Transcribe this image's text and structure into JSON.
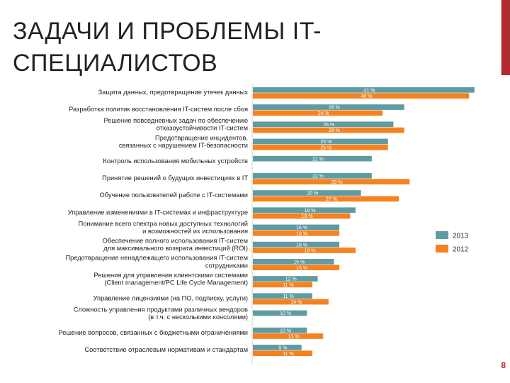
{
  "slide": {
    "title_line1": "ЗАДАЧИ И ПРОБЛЕМЫ IT-",
    "title_line2": "СПЕЦИАЛИСТОВ",
    "page_number": "8"
  },
  "chart_data": {
    "type": "bar",
    "orientation": "horizontal",
    "title": "",
    "categories": [
      [
        "Защита данных, предотвращение утечек данных"
      ],
      [
        "Разработка политик восстановления IT-систем после сбоя"
      ],
      [
        "Решение повседневных задач по обеспечению",
        "отказоустойчивости IT-систем"
      ],
      [
        "Предотвращение инцидентов,",
        "связанных с нарушением IT-безопасности"
      ],
      [
        "Контроль использования мобильных устройств"
      ],
      [
        "Принятие решений о будущих инвестициях в IT"
      ],
      [
        "Обучение пользователей работе с IT-системами"
      ],
      [
        "Управление изменениями в IT-системах и инфраструктуре"
      ],
      [
        "Понимание всего спектра новых доступных технологий",
        "и возможностей их использования"
      ],
      [
        "Обеспечение полного использования IT-систем",
        "для максимального возврата инвестиций (ROI)"
      ],
      [
        "Предотвращение ненадлежащего использования IT-систем",
        "сотрудниками"
      ],
      [
        "Решения для управления клиентскими системами",
        "(Client management/PC Life Cycle Management)"
      ],
      [
        "Управление лицензиями (на ПО, подписку, услуги)"
      ],
      [
        "Сложность управления продуктами различных вендоров",
        "(в т.ч. с несколькими консолями)"
      ],
      [
        "Решение вопросов, связанных с бюджетными ограничениями"
      ],
      [
        "Соответствие отраслевым нормативам и стандартам"
      ]
    ],
    "series": [
      {
        "name": "2013",
        "color": "#5f9ba3",
        "values": [
          41,
          28,
          26,
          25,
          22,
          22,
          20,
          19,
          16,
          16,
          15,
          12,
          11,
          10,
          10,
          9
        ]
      },
      {
        "name": "2012",
        "color": "#f5821f",
        "values": [
          40,
          24,
          28,
          25,
          null,
          29,
          27,
          18,
          16,
          19,
          16,
          11,
          14,
          null,
          13,
          11
        ]
      }
    ],
    "value_suffix": "%",
    "xlim": [
      0,
      41
    ],
    "legend_position": "right"
  }
}
